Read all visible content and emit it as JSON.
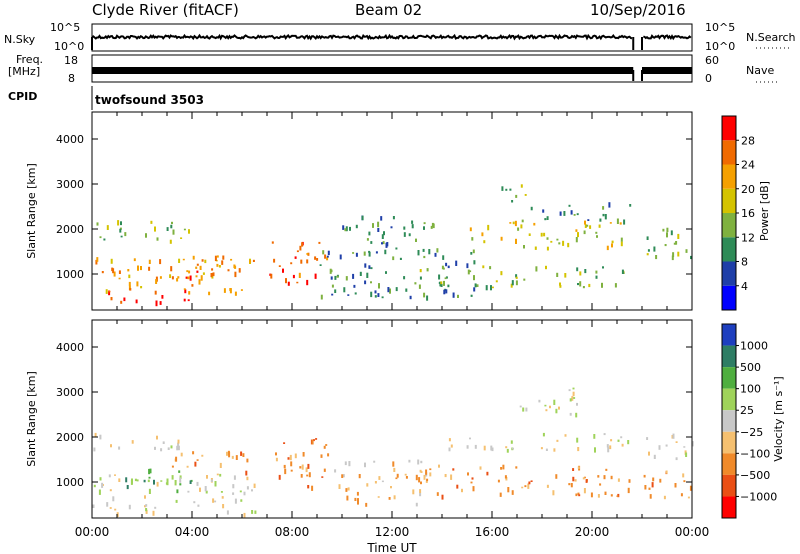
{
  "header": {
    "station": "Clyde River (fitACF)",
    "beam": "Beam 02",
    "date": "10/Sep/2016"
  },
  "status_panels": {
    "nsky": {
      "label": "N.Sky",
      "ticks": [
        "10^5",
        "10^0"
      ]
    },
    "nsearch": {
      "label": "N.Search",
      "ticks": [
        "10^5",
        "10^0"
      ]
    },
    "freq": {
      "label_line1": "Freq.",
      "label_line2": "[MHz]",
      "ticks": [
        "18",
        "8"
      ]
    },
    "nave": {
      "label": "Nave",
      "ticks": [
        "60",
        "0"
      ]
    },
    "cpid": {
      "label": "CPID",
      "program": "twofsound 3503"
    }
  },
  "chart_data": [
    {
      "type": "heatmap",
      "title": "",
      "xlabel": "",
      "ylabel": "Slant Range [km]",
      "ylim": [
        200,
        4600
      ],
      "yticks": [
        1000,
        2000,
        3000,
        4000
      ],
      "xlim": [
        0,
        24
      ],
      "colorbar": {
        "label": "Power [dB]",
        "ticks": [
          "4",
          "8",
          "12",
          "16",
          "20",
          "24",
          "28"
        ],
        "colors": [
          "#0000ff",
          "#1f3fa8",
          "#2e8b57",
          "#7fb13f",
          "#d4c300",
          "#f5a000",
          "#f06a00",
          "#ff0000"
        ]
      },
      "regions": [
        {
          "t0": 0.6,
          "t1": 2.0,
          "r0": 250,
          "r1": 650,
          "level": 7
        },
        {
          "t0": 2.5,
          "t1": 4.0,
          "r0": 250,
          "r1": 700,
          "level": 7
        },
        {
          "t0": 0.0,
          "t1": 6.5,
          "r0": 600,
          "r1": 1400,
          "level": 5
        },
        {
          "t0": 3.0,
          "t1": 6.0,
          "r0": 900,
          "r1": 1500,
          "level": 6
        },
        {
          "t0": 0.0,
          "t1": 4.0,
          "r0": 1700,
          "r1": 2200,
          "level": 3
        },
        {
          "t0": 7.0,
          "t1": 9.5,
          "r0": 800,
          "r1": 1800,
          "level": 6
        },
        {
          "t0": 9.0,
          "t1": 15.5,
          "r0": 500,
          "r1": 1600,
          "level": 2
        },
        {
          "t0": 10.0,
          "t1": 14.0,
          "r0": 1500,
          "r1": 2300,
          "level": 2
        },
        {
          "t0": 13.0,
          "t1": 21.5,
          "r0": 700,
          "r1": 1200,
          "level": 3
        },
        {
          "t0": 15.0,
          "t1": 21.5,
          "r0": 1600,
          "r1": 2200,
          "level": 4
        },
        {
          "t0": 17.0,
          "t1": 21.5,
          "r0": 2200,
          "r1": 2600,
          "level": 2
        },
        {
          "t0": 22.0,
          "t1": 24.0,
          "r0": 1400,
          "r1": 2200,
          "level": 3
        },
        {
          "t0": 16.0,
          "t1": 17.5,
          "r0": 2600,
          "r1": 3000,
          "level": 3
        }
      ]
    },
    {
      "type": "heatmap",
      "title": "",
      "xlabel": "Time UT",
      "ylabel": "Slant Range [km]",
      "ylim": [
        200,
        4600
      ],
      "yticks": [
        1000,
        2000,
        3000,
        4000
      ],
      "xlim": [
        0,
        24
      ],
      "xticks": [
        "00:00",
        "04:00",
        "08:00",
        "12:00",
        "16:00",
        "20:00",
        "00:00"
      ],
      "colorbar": {
        "label": "Velocity [m s⁻¹]",
        "ticks": [
          "1000",
          "500",
          "100",
          "25",
          "−25",
          "−100",
          "−500",
          "−1000"
        ],
        "colors": [
          "#1e3fbf",
          "#2e7d64",
          "#4fae3f",
          "#9fd35a",
          "#c8c8c8",
          "#f5c070",
          "#f08a2a",
          "#ea4f15",
          "#ff0000"
        ]
      },
      "regions": [
        {
          "t0": 0.0,
          "t1": 4.0,
          "r0": 1750,
          "r1": 2100,
          "level": 4
        },
        {
          "t0": 0.0,
          "t1": 6.5,
          "r0": 300,
          "r1": 1200,
          "level": 4
        },
        {
          "t0": 0.5,
          "t1": 4.0,
          "r0": 800,
          "r1": 1300,
          "level": 2
        },
        {
          "t0": 3.0,
          "t1": 6.5,
          "r0": 1200,
          "r1": 1700,
          "level": 6
        },
        {
          "t0": 7.0,
          "t1": 9.5,
          "r0": 900,
          "r1": 2000,
          "level": 6
        },
        {
          "t0": 9.5,
          "t1": 13.5,
          "r0": 500,
          "r1": 1500,
          "level": 5
        },
        {
          "t0": 13.0,
          "t1": 21.5,
          "r0": 700,
          "r1": 1400,
          "level": 6
        },
        {
          "t0": 14.0,
          "t1": 21.5,
          "r0": 1700,
          "r1": 2100,
          "level": 4
        },
        {
          "t0": 17.0,
          "t1": 19.5,
          "r0": 2400,
          "r1": 3100,
          "level": 4
        },
        {
          "t0": 22.0,
          "t1": 24.0,
          "r0": 1500,
          "r1": 2100,
          "level": 4
        },
        {
          "t0": 22.0,
          "t1": 24.0,
          "r0": 600,
          "r1": 1300,
          "level": 6
        }
      ]
    }
  ]
}
